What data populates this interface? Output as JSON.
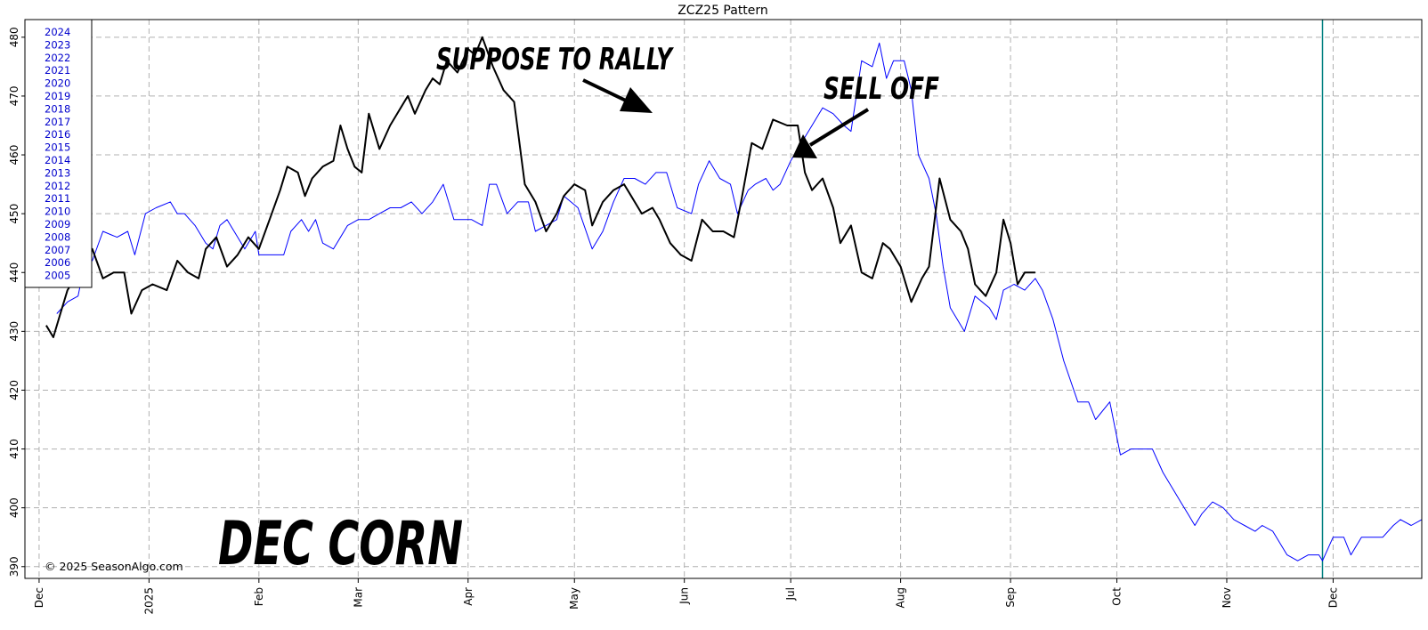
{
  "chart_data": {
    "type": "line",
    "title": "ZCZ25  Pattern",
    "xlabel": "",
    "ylabel": "",
    "ylim": [
      388,
      483
    ],
    "yticks": [
      390,
      400,
      410,
      420,
      430,
      440,
      450,
      460,
      470,
      480
    ],
    "x_tick_labels": [
      "Dec",
      "2025",
      "Feb",
      "Mar",
      "Apr",
      "May",
      "Jun",
      "Jul",
      "Aug",
      "Sep",
      "Oct",
      "Nov",
      "Dec"
    ],
    "x_tick_dates": [
      "2024-12-01",
      "2025-01-01",
      "2025-02-01",
      "2025-03-01",
      "2025-04-01",
      "2025-05-01",
      "2025-06-01",
      "2025-07-01",
      "2025-08-01",
      "2025-09-01",
      "2025-10-01",
      "2025-11-01",
      "2025-12-01"
    ],
    "xlim": [
      "2024-11-27",
      "2025-12-26"
    ],
    "grid": true,
    "vertical_marker": {
      "date": "2025-11-28",
      "color": "#008080"
    },
    "legend": {
      "placement": "top-left",
      "entries": [
        "2024",
        "2023",
        "2022",
        "2021",
        "2020",
        "2019",
        "2018",
        "2017",
        "2016",
        "2015",
        "2014",
        "2013",
        "2012",
        "2011",
        "2010",
        "2009",
        "2008",
        "2007",
        "2006",
        "2005"
      ]
    },
    "series": [
      {
        "color": "#0000ff",
        "width": 1,
        "points": [
          [
            "2024-12-06",
            433
          ],
          [
            "2024-12-09",
            435
          ],
          [
            "2024-12-12",
            436
          ],
          [
            "2024-12-14",
            442
          ],
          [
            "2024-12-16",
            442
          ],
          [
            "2024-12-19",
            447
          ],
          [
            "2024-12-23",
            446
          ],
          [
            "2024-12-26",
            447
          ],
          [
            "2024-12-28",
            443
          ],
          [
            "2024-12-31",
            450
          ],
          [
            "2025-01-03",
            451
          ],
          [
            "2025-01-07",
            452
          ],
          [
            "2025-01-09",
            450
          ],
          [
            "2025-01-11",
            450
          ],
          [
            "2025-01-14",
            448
          ],
          [
            "2025-01-17",
            445
          ],
          [
            "2025-01-19",
            444
          ],
          [
            "2025-01-21",
            448
          ],
          [
            "2025-01-23",
            449
          ],
          [
            "2025-01-25",
            447
          ],
          [
            "2025-01-28",
            444
          ],
          [
            "2025-01-31",
            447
          ],
          [
            "2025-02-01",
            443
          ],
          [
            "2025-02-05",
            443
          ],
          [
            "2025-02-08",
            443
          ],
          [
            "2025-02-10",
            447
          ],
          [
            "2025-02-13",
            449
          ],
          [
            "2025-02-15",
            447
          ],
          [
            "2025-02-17",
            449
          ],
          [
            "2025-02-19",
            445
          ],
          [
            "2025-02-22",
            444
          ],
          [
            "2025-02-26",
            448
          ],
          [
            "2025-03-01",
            449
          ],
          [
            "2025-03-04",
            449
          ],
          [
            "2025-03-07",
            450
          ],
          [
            "2025-03-10",
            451
          ],
          [
            "2025-03-13",
            451
          ],
          [
            "2025-03-16",
            452
          ],
          [
            "2025-03-19",
            450
          ],
          [
            "2025-03-22",
            452
          ],
          [
            "2025-03-25",
            455
          ],
          [
            "2025-03-28",
            449
          ],
          [
            "2025-04-02",
            449
          ],
          [
            "2025-04-05",
            448
          ],
          [
            "2025-04-07",
            455
          ],
          [
            "2025-04-09",
            455
          ],
          [
            "2025-04-12",
            450
          ],
          [
            "2025-04-15",
            452
          ],
          [
            "2025-04-18",
            452
          ],
          [
            "2025-04-20",
            447
          ],
          [
            "2025-04-23",
            448
          ],
          [
            "2025-04-26",
            449
          ],
          [
            "2025-04-28",
            453
          ],
          [
            "2025-04-30",
            452
          ],
          [
            "2025-05-02",
            451
          ],
          [
            "2025-05-06",
            444
          ],
          [
            "2025-05-09",
            447
          ],
          [
            "2025-05-12",
            452
          ],
          [
            "2025-05-15",
            456
          ],
          [
            "2025-05-18",
            456
          ],
          [
            "2025-05-21",
            455
          ],
          [
            "2025-05-24",
            457
          ],
          [
            "2025-05-27",
            457
          ],
          [
            "2025-05-30",
            451
          ],
          [
            "2025-06-03",
            450
          ],
          [
            "2025-06-05",
            455
          ],
          [
            "2025-06-08",
            459
          ],
          [
            "2025-06-11",
            456
          ],
          [
            "2025-06-14",
            455
          ],
          [
            "2025-06-16",
            450
          ],
          [
            "2025-06-19",
            454
          ],
          [
            "2025-06-21",
            455
          ],
          [
            "2025-06-24",
            456
          ],
          [
            "2025-06-26",
            454
          ],
          [
            "2025-06-28",
            455
          ],
          [
            "2025-07-01",
            459
          ],
          [
            "2025-07-04",
            462
          ],
          [
            "2025-07-07",
            465
          ],
          [
            "2025-07-10",
            468
          ],
          [
            "2025-07-13",
            467
          ],
          [
            "2025-07-16",
            465
          ],
          [
            "2025-07-18",
            464
          ],
          [
            "2025-07-21",
            476
          ],
          [
            "2025-07-24",
            475
          ],
          [
            "2025-07-26",
            479
          ],
          [
            "2025-07-28",
            473
          ],
          [
            "2025-07-30",
            476
          ],
          [
            "2025-08-02",
            476
          ],
          [
            "2025-08-04",
            471
          ],
          [
            "2025-08-06",
            460
          ],
          [
            "2025-08-09",
            456
          ],
          [
            "2025-08-11",
            450
          ],
          [
            "2025-08-13",
            441
          ],
          [
            "2025-08-15",
            434
          ],
          [
            "2025-08-19",
            430
          ],
          [
            "2025-08-22",
            436
          ],
          [
            "2025-08-26",
            434
          ],
          [
            "2025-08-28",
            432
          ],
          [
            "2025-08-30",
            437
          ],
          [
            "2025-09-02",
            438
          ],
          [
            "2025-09-05",
            437
          ],
          [
            "2025-09-08",
            439
          ],
          [
            "2025-09-10",
            437
          ],
          [
            "2025-09-13",
            432
          ],
          [
            "2025-09-16",
            425
          ],
          [
            "2025-09-20",
            418
          ],
          [
            "2025-09-23",
            418
          ],
          [
            "2025-09-25",
            415
          ],
          [
            "2025-09-29",
            418
          ],
          [
            "2025-10-02",
            409
          ],
          [
            "2025-10-05",
            410
          ],
          [
            "2025-10-08",
            410
          ],
          [
            "2025-10-11",
            410
          ],
          [
            "2025-10-14",
            406
          ],
          [
            "2025-10-17",
            403
          ],
          [
            "2025-10-19",
            401
          ],
          [
            "2025-10-21",
            399
          ],
          [
            "2025-10-23",
            397
          ],
          [
            "2025-10-25",
            399
          ],
          [
            "2025-10-28",
            401
          ],
          [
            "2025-10-31",
            400
          ],
          [
            "2025-11-03",
            398
          ],
          [
            "2025-11-06",
            397
          ],
          [
            "2025-11-09",
            396
          ],
          [
            "2025-11-11",
            397
          ],
          [
            "2025-11-14",
            396
          ],
          [
            "2025-11-18",
            392
          ],
          [
            "2025-11-21",
            391
          ],
          [
            "2025-11-24",
            392
          ],
          [
            "2025-11-27",
            392
          ],
          [
            "2025-11-28",
            391
          ],
          [
            "2025-12-01",
            395
          ],
          [
            "2025-12-04",
            395
          ],
          [
            "2025-12-06",
            392
          ],
          [
            "2025-12-09",
            395
          ],
          [
            "2025-12-12",
            395
          ],
          [
            "2025-12-15",
            395
          ],
          [
            "2025-12-18",
            397
          ],
          [
            "2025-12-20",
            398
          ],
          [
            "2025-12-23",
            397
          ],
          [
            "2025-12-26",
            398
          ]
        ]
      },
      {
        "color": "#000000",
        "width": 2,
        "points": [
          [
            "2024-12-03",
            431
          ],
          [
            "2024-12-05",
            429
          ],
          [
            "2024-12-07",
            433
          ],
          [
            "2024-12-09",
            437
          ],
          [
            "2024-12-11",
            439
          ],
          [
            "2024-12-13",
            440
          ],
          [
            "2024-12-16",
            444
          ],
          [
            "2024-12-19",
            439
          ],
          [
            "2024-12-22",
            440
          ],
          [
            "2024-12-25",
            440
          ],
          [
            "2024-12-27",
            433
          ],
          [
            "2024-12-30",
            437
          ],
          [
            "2025-01-02",
            438
          ],
          [
            "2025-01-06",
            437
          ],
          [
            "2025-01-09",
            442
          ],
          [
            "2025-01-12",
            440
          ],
          [
            "2025-01-15",
            439
          ],
          [
            "2025-01-17",
            444
          ],
          [
            "2025-01-20",
            446
          ],
          [
            "2025-01-23",
            441
          ],
          [
            "2025-01-26",
            443
          ],
          [
            "2025-01-29",
            446
          ],
          [
            "2025-02-01",
            444
          ],
          [
            "2025-02-04",
            449
          ],
          [
            "2025-02-07",
            454
          ],
          [
            "2025-02-09",
            458
          ],
          [
            "2025-02-12",
            457
          ],
          [
            "2025-02-14",
            453
          ],
          [
            "2025-02-16",
            456
          ],
          [
            "2025-02-19",
            458
          ],
          [
            "2025-02-22",
            459
          ],
          [
            "2025-02-24",
            465
          ],
          [
            "2025-02-26",
            461
          ],
          [
            "2025-02-28",
            458
          ],
          [
            "2025-03-02",
            457
          ],
          [
            "2025-03-04",
            467
          ],
          [
            "2025-03-07",
            461
          ],
          [
            "2025-03-10",
            465
          ],
          [
            "2025-03-13",
            468
          ],
          [
            "2025-03-15",
            470
          ],
          [
            "2025-03-17",
            467
          ],
          [
            "2025-03-20",
            471
          ],
          [
            "2025-03-22",
            473
          ],
          [
            "2025-03-24",
            472
          ],
          [
            "2025-03-26",
            476
          ],
          [
            "2025-03-29",
            474
          ],
          [
            "2025-04-01",
            478
          ],
          [
            "2025-04-03",
            477
          ],
          [
            "2025-04-05",
            480
          ],
          [
            "2025-04-08",
            475
          ],
          [
            "2025-04-11",
            471
          ],
          [
            "2025-04-14",
            469
          ],
          [
            "2025-04-17",
            455
          ],
          [
            "2025-04-20",
            452
          ],
          [
            "2025-04-23",
            447
          ],
          [
            "2025-04-26",
            450
          ],
          [
            "2025-04-28",
            453
          ],
          [
            "2025-05-01",
            455
          ],
          [
            "2025-05-04",
            454
          ],
          [
            "2025-05-06",
            448
          ],
          [
            "2025-05-09",
            452
          ],
          [
            "2025-05-12",
            454
          ],
          [
            "2025-05-15",
            455
          ],
          [
            "2025-05-17",
            453
          ],
          [
            "2025-05-20",
            450
          ],
          [
            "2025-05-23",
            451
          ],
          [
            "2025-05-25",
            449
          ],
          [
            "2025-05-28",
            445
          ],
          [
            "2025-05-31",
            443
          ],
          [
            "2025-06-03",
            442
          ],
          [
            "2025-06-06",
            449
          ],
          [
            "2025-06-09",
            447
          ],
          [
            "2025-06-12",
            447
          ],
          [
            "2025-06-15",
            446
          ],
          [
            "2025-06-17",
            452
          ],
          [
            "2025-06-20",
            462
          ],
          [
            "2025-06-23",
            461
          ],
          [
            "2025-06-26",
            466
          ],
          [
            "2025-06-30",
            465
          ],
          [
            "2025-07-03",
            465
          ],
          [
            "2025-07-05",
            457
          ],
          [
            "2025-07-07",
            454
          ],
          [
            "2025-07-10",
            456
          ],
          [
            "2025-07-13",
            451
          ],
          [
            "2025-07-15",
            445
          ],
          [
            "2025-07-18",
            448
          ],
          [
            "2025-07-21",
            440
          ],
          [
            "2025-07-24",
            439
          ],
          [
            "2025-07-27",
            445
          ],
          [
            "2025-07-29",
            444
          ],
          [
            "2025-08-01",
            441
          ],
          [
            "2025-08-04",
            435
          ],
          [
            "2025-08-07",
            439
          ],
          [
            "2025-08-09",
            441
          ],
          [
            "2025-08-12",
            456
          ],
          [
            "2025-08-15",
            449
          ],
          [
            "2025-08-18",
            447
          ],
          [
            "2025-08-20",
            444
          ],
          [
            "2025-08-22",
            438
          ],
          [
            "2025-08-25",
            436
          ],
          [
            "2025-08-28",
            440
          ],
          [
            "2025-08-30",
            449
          ],
          [
            "2025-09-01",
            445
          ],
          [
            "2025-09-03",
            438
          ],
          [
            "2025-09-05",
            440
          ],
          [
            "2025-09-08",
            440
          ]
        ]
      }
    ],
    "annotations": [
      {
        "text": "SUPPOSE TO RALLY"
      },
      {
        "text": "SELL OFF"
      },
      {
        "text": "DEC CORN"
      }
    ],
    "copyright": "© 2025 SeasonAlgo.com"
  }
}
